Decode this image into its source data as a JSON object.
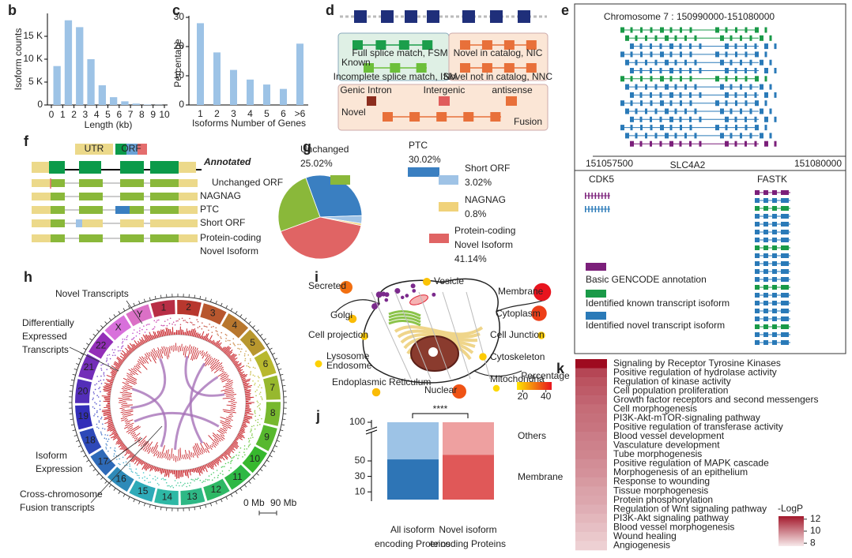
{
  "panels": [
    "b",
    "c",
    "d",
    "e",
    "f",
    "g",
    "h",
    "i",
    "j",
    "k"
  ],
  "chart_data": [
    {
      "type": "histogram",
      "ylabel": "Isoform counts",
      "xlabel": "Length (kb)",
      "bins": [
        0,
        1,
        2,
        3,
        4,
        5,
        6,
        7,
        8,
        9,
        10
      ],
      "counts": [
        8500,
        18500,
        17000,
        10000,
        4300,
        1700,
        800,
        300,
        100,
        50
      ],
      "color": "#9dc3e6",
      "xlim": [
        0,
        10
      ],
      "xticks": [
        0,
        1,
        2,
        3,
        4,
        5,
        6,
        7,
        8,
        9,
        10
      ],
      "ylim": [
        0,
        20000
      ],
      "yticks": [
        0,
        {
          "value": 5000,
          "label": "5 K"
        },
        {
          "value": 10000,
          "label": "10 K"
        },
        {
          "value": 15000,
          "label": "15 K"
        }
      ]
    },
    {
      "type": "bar",
      "ylabel": "Percentage",
      "xlabel": "Isoforms Number of Genes",
      "categories": [
        "1",
        "2",
        "3",
        "4",
        "5",
        "6",
        ">6"
      ],
      "values": [
        28,
        18,
        12,
        8.7,
        7,
        5.5,
        21
      ],
      "color": "#9dc3e6",
      "ylim": [
        0,
        30
      ],
      "yticks": [
        0,
        10,
        20,
        30
      ]
    },
    {
      "type": "pie",
      "categories": [
        [
          "PTC"
        ],
        [
          "Short ORF"
        ],
        [
          "NAGNAG"
        ],
        [
          "Protein-coding",
          "Novel Isoform"
        ],
        [
          "Unchanged"
        ]
      ],
      "values": [
        30.02,
        3.02,
        0.8,
        41.14,
        25.02
      ],
      "value_labels": [
        "30.02%",
        "3.02%",
        "0.8%",
        "41.14%",
        "25.02%"
      ],
      "colors": [
        "#3a7fc1",
        "#9fc3e6",
        "#f0d27a",
        "#e06464",
        "#8ab83a"
      ]
    },
    {
      "type": "stacked-bar",
      "categories": [
        [
          "All isoform",
          "encoding Proteins"
        ],
        [
          "Novel isoform",
          "encoding Proteins"
        ]
      ],
      "series": [
        {
          "name": "Membrane",
          "colors": [
            "#2e75b6",
            "#e05858"
          ],
          "values": [
            52,
            58
          ]
        },
        {
          "name": "Others",
          "colors": [
            "#9dc3e6",
            "#eea0a0"
          ],
          "values": [
            48,
            42
          ]
        }
      ],
      "ylim": [
        0,
        100
      ],
      "yticks": [
        10,
        30,
        50,
        100
      ],
      "annotation": "****"
    },
    {
      "type": "heatmap",
      "categories": [
        "Signaling by Receptor Tyrosine Kinases",
        "Positive regulation of hydrolase activity",
        "Regulation of kinase activity",
        "Cell population proliferation",
        "Growth factor receptors and second messengers",
        "Cell morphogenesis",
        "PI3K-Akt-mTOR-signaling pathway",
        "Positive regulation of transferase activity",
        "Blood vessel development",
        "Vasculature development",
        "Tube morphogenesis",
        "Positive regulation of MAPK cascade",
        "Morphogenesis of an epithelium",
        "Response to wounding",
        "Tissue morphogenesis",
        "Protein phosphorylation",
        "Regulation of Wnt signaling pathway",
        "PI3K-Akt signaling pathway",
        "Blood vessel morphogenesis",
        "Wound healing",
        "Angiogenesis"
      ],
      "values": [
        12.8,
        11.4,
        11.1,
        10.9,
        10.7,
        10.5,
        10.4,
        10.3,
        10.1,
        10,
        9.9,
        9.7,
        9.6,
        9.4,
        9.2,
        9.1,
        8.9,
        8.7,
        8.5,
        8.3,
        8.1
      ],
      "colorbar_title": "-LogP",
      "clim": [
        7.5,
        12.5
      ],
      "cticks": [
        8,
        10,
        12
      ],
      "colors": [
        "#f7e9ea",
        "#a3182b"
      ]
    },
    {
      "type": "bubble",
      "categories": [
        "Secreted",
        "Vesicle",
        "Membrane",
        "Golgi",
        "Cytoplasm",
        "Cell projection",
        "Cell Junction",
        [
          "Lysosome",
          "Endosome"
        ],
        "Cytoskeleton",
        "Endoplasmic Reticulum",
        "Nuclear",
        "Mitochondria"
      ],
      "values": [
        32,
        20,
        45,
        21,
        39,
        19,
        19,
        18,
        19,
        21,
        36,
        17
      ],
      "colorbar_title": "Percentage",
      "clim": [
        15,
        45
      ],
      "cticks": [
        20,
        40
      ],
      "colors": [
        "#ffe600",
        "#e8141e"
      ]
    }
  ],
  "diagrams": {
    "d": {
      "known": "Known",
      "fsm": "Full splice match, FSM",
      "ism": "Incomplete splice match, ISM",
      "nic": "Novel in catalog, NIC",
      "nnc": "Novel not in catalog, NNC",
      "novel": "Novel",
      "genic_intron": "Genic Intron",
      "intergenic": "Intergenic",
      "antisense": "antisense",
      "fusion": "Fusion"
    },
    "e": {
      "title": "Chromosome 7 : 150990000-151080000",
      "start": "151057500",
      "gene": "SLC4A2",
      "end": "151080000",
      "genes": [
        "CDK5",
        "FASTK"
      ],
      "legend": [
        "Basic GENCODE annotation",
        "Identified known transcript isoform",
        "Identified novel transcript isoform"
      ]
    },
    "f": {
      "utr": "UTR",
      "orf": "ORF",
      "annotated": "Annotated",
      "rows": [
        [
          "Unchanged ORF"
        ],
        [
          "NAGNAG"
        ],
        [
          "PTC"
        ],
        [
          "Short ORF"
        ],
        [
          "Protein-coding",
          "Novel Isoform"
        ]
      ]
    },
    "h": {
      "labels": [
        [
          "Novel Transcripts"
        ],
        [
          "Differentially",
          "Expressed",
          "Transcripts"
        ],
        [
          "Isoform",
          "Expression"
        ],
        [
          "Cross-chromosome",
          "Fusion transcripts"
        ]
      ],
      "chromosomes": [
        "1",
        "2",
        "3",
        "4",
        "5",
        "6",
        "7",
        "8",
        "9",
        "10",
        "11",
        "12",
        "13",
        "14",
        "15",
        "16",
        "17",
        "18",
        "19",
        "20",
        "21",
        "22",
        "X",
        "Y"
      ],
      "scale": [
        "0 Mb",
        "90 Mb"
      ]
    }
  }
}
